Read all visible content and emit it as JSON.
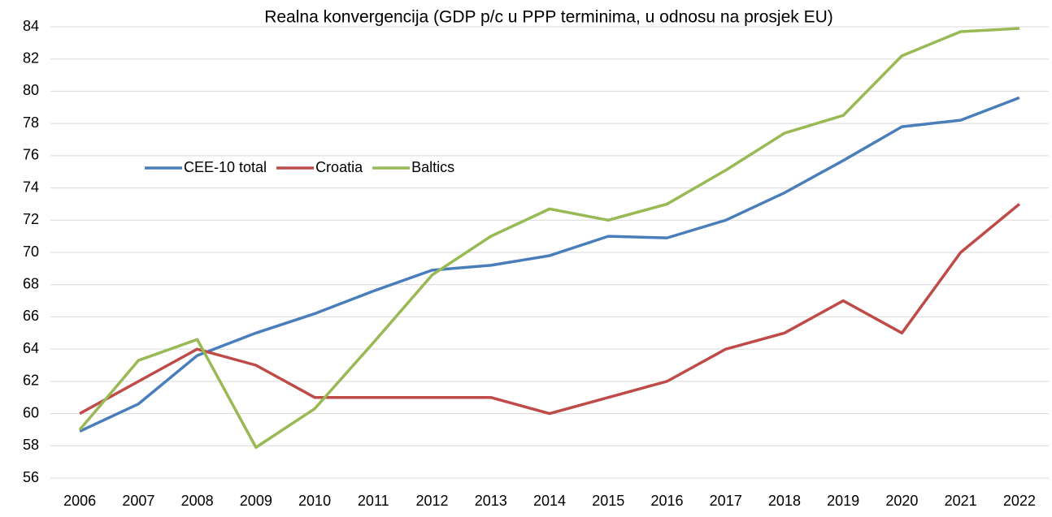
{
  "chart_data": {
    "type": "line",
    "title": "Realna konvergencija (GDP p/c u PPP terminima, u odnosu na prosjek EU)",
    "categories": [
      "2006",
      "2007",
      "2008",
      "2009",
      "2010",
      "2011",
      "2012",
      "2013",
      "2014",
      "2015",
      "2016",
      "2017",
      "2018",
      "2019",
      "2020",
      "2021",
      "2022"
    ],
    "series": [
      {
        "name": "CEE-10 total",
        "color": "#4a7ebb",
        "values": [
          58.9,
          60.6,
          63.6,
          65.0,
          66.2,
          67.6,
          68.9,
          69.2,
          69.8,
          71.0,
          70.9,
          72.0,
          73.7,
          75.7,
          77.8,
          78.2,
          79.6
        ]
      },
      {
        "name": "Croatia",
        "color": "#be4b48",
        "values": [
          60,
          62,
          64,
          63,
          61,
          61,
          61,
          61,
          60,
          61,
          62,
          64,
          65,
          67,
          65,
          70,
          73
        ]
      },
      {
        "name": "Baltics",
        "color": "#98b954",
        "values": [
          59,
          63.3,
          64.6,
          57.9,
          60.3,
          64.4,
          68.6,
          71.0,
          72.7,
          72.0,
          73.0,
          75.1,
          77.4,
          78.5,
          82.2,
          83.7,
          83.9
        ]
      }
    ],
    "ylim": [
      56,
      84
    ],
    "yticks": [
      56,
      58,
      60,
      62,
      64,
      66,
      68,
      70,
      72,
      74,
      76,
      78,
      80,
      82,
      84
    ],
    "grid": true
  }
}
